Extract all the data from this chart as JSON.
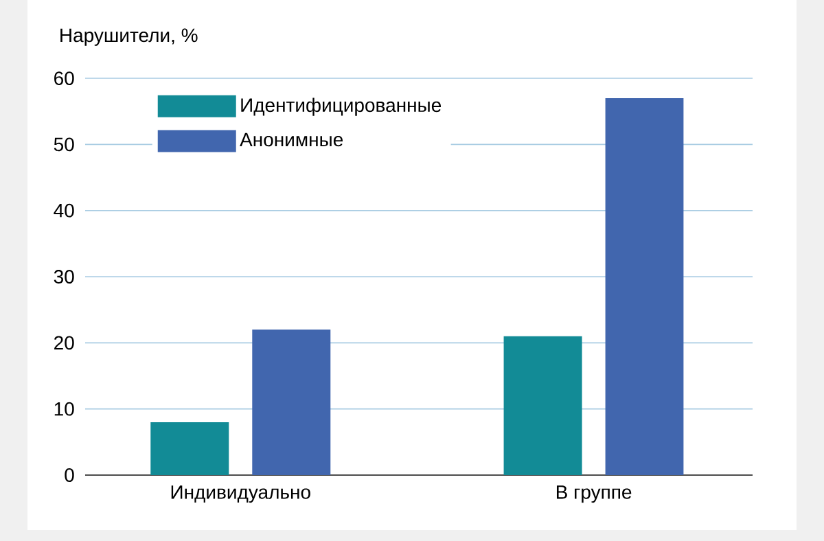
{
  "chart_data": {
    "type": "bar",
    "ylabel": "Нарушители, %",
    "categories": [
      "Индивидуально",
      "В группе"
    ],
    "series": [
      {
        "name": "Идентифицированные",
        "color": "#128b96",
        "values": [
          8,
          21
        ]
      },
      {
        "name": "Анонимные",
        "color": "#4166ae",
        "values": [
          22,
          57
        ]
      }
    ],
    "ylim": [
      0,
      60
    ],
    "yticks": [
      0,
      10,
      20,
      30,
      40,
      50,
      60
    ],
    "grid": "y",
    "legend": "top left"
  }
}
